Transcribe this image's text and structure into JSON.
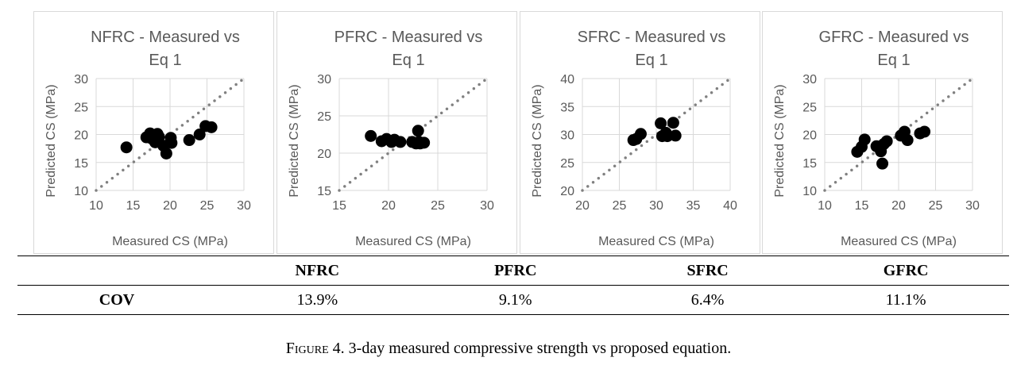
{
  "chart_data": [
    {
      "type": "scatter",
      "title_lines": [
        "NFRC - Measured vs",
        "Eq 1"
      ],
      "xlabel": "Measured CS (MPa)",
      "ylabel": "Predicted CS (MPa)",
      "xlim": [
        10,
        30
      ],
      "ylim": [
        10,
        30
      ],
      "xticks": [
        10,
        15,
        20,
        25,
        30
      ],
      "yticks": [
        10,
        15,
        20,
        25,
        30
      ],
      "grid": true,
      "reference_line": [
        [
          10,
          10
        ],
        [
          30,
          30
        ]
      ],
      "points": [
        [
          14.1,
          17.7
        ],
        [
          16.8,
          19.5
        ],
        [
          17.3,
          20.2
        ],
        [
          17.5,
          19.3
        ],
        [
          17.9,
          18.9
        ],
        [
          18.0,
          18.6
        ],
        [
          18.3,
          20.1
        ],
        [
          18.5,
          19.6
        ],
        [
          19.1,
          18.0
        ],
        [
          19.5,
          16.6
        ],
        [
          20.1,
          19.4
        ],
        [
          20.2,
          18.5
        ],
        [
          22.6,
          19.0
        ],
        [
          24.0,
          20.0
        ],
        [
          24.8,
          21.5
        ],
        [
          25.6,
          21.3
        ]
      ]
    },
    {
      "type": "scatter",
      "title_lines": [
        "PFRC - Measured vs",
        "Eq 1"
      ],
      "xlabel": "Measured CS (MPa)",
      "ylabel": "Predicted CS (MPa)",
      "xlim": [
        15,
        30
      ],
      "ylim": [
        15,
        30
      ],
      "xticks": [
        15,
        20,
        25,
        30
      ],
      "yticks": [
        15,
        20,
        25,
        30
      ],
      "grid": true,
      "reference_line": [
        [
          15,
          15
        ],
        [
          30,
          30
        ]
      ],
      "points": [
        [
          18.2,
          22.3
        ],
        [
          19.3,
          21.6
        ],
        [
          19.8,
          21.9
        ],
        [
          20.3,
          21.5
        ],
        [
          20.6,
          21.8
        ],
        [
          21.2,
          21.5
        ],
        [
          22.4,
          21.5
        ],
        [
          22.8,
          21.3
        ],
        [
          23.0,
          23.0
        ],
        [
          23.1,
          21.5
        ],
        [
          23.2,
          21.3
        ],
        [
          23.6,
          21.4
        ]
      ]
    },
    {
      "type": "scatter",
      "title_lines": [
        "SFRC - Measured vs",
        "Eq 1"
      ],
      "xlabel": "Measured CS (MPa)",
      "ylabel": "Predicted CS (MPa)",
      "xlim": [
        20,
        40
      ],
      "ylim": [
        20,
        40
      ],
      "xticks": [
        20,
        25,
        30,
        35,
        40
      ],
      "yticks": [
        20,
        25,
        30,
        35,
        40
      ],
      "grid": true,
      "reference_line": [
        [
          20,
          20
        ],
        [
          40,
          40
        ]
      ],
      "points": [
        [
          26.9,
          29.0
        ],
        [
          27.3,
          29.2
        ],
        [
          27.9,
          30.1
        ],
        [
          30.6,
          32.0
        ],
        [
          30.8,
          29.7
        ],
        [
          31.3,
          30.3
        ],
        [
          31.5,
          29.7
        ],
        [
          32.3,
          32.1
        ],
        [
          32.6,
          29.8
        ]
      ]
    },
    {
      "type": "scatter",
      "title_lines": [
        "GFRC - Measured vs",
        "Eq 1"
      ],
      "xlabel": "Measured CS (MPa)",
      "ylabel": "Predicted CS (MPa)",
      "xlim": [
        10,
        30
      ],
      "ylim": [
        10,
        30
      ],
      "xticks": [
        10,
        15,
        20,
        25,
        30
      ],
      "yticks": [
        10,
        15,
        20,
        25,
        30
      ],
      "grid": true,
      "reference_line": [
        [
          10,
          10
        ],
        [
          30,
          30
        ]
      ],
      "points": [
        [
          14.4,
          16.9
        ],
        [
          15.0,
          17.8
        ],
        [
          15.4,
          19.1
        ],
        [
          17.0,
          17.9
        ],
        [
          17.6,
          17.0
        ],
        [
          17.8,
          14.8
        ],
        [
          18.0,
          18.3
        ],
        [
          18.4,
          18.8
        ],
        [
          20.3,
          19.8
        ],
        [
          20.8,
          20.5
        ],
        [
          21.2,
          19.0
        ],
        [
          22.9,
          20.2
        ],
        [
          23.5,
          20.5
        ]
      ]
    }
  ],
  "table": {
    "headers": [
      "",
      "NFRC",
      "PFRC",
      "SFRC",
      "GFRC"
    ],
    "row_label": "COV",
    "values": [
      "13.9%",
      "9.1%",
      "6.4%",
      "11.1%"
    ]
  },
  "caption": {
    "figure_label": "Figure 4.",
    "text": " 3-day measured compressive strength vs proposed equation."
  },
  "colors": {
    "marker": "#000000",
    "reference_line": "#808080",
    "grid": "#d9d9d9",
    "axis_text": "#595959"
  }
}
